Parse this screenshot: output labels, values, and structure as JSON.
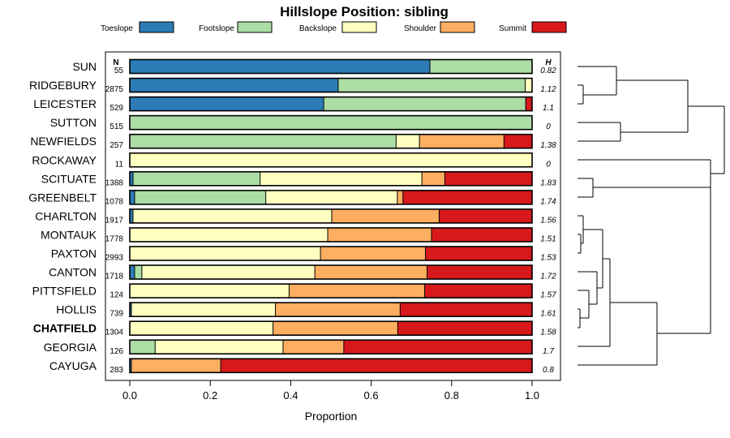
{
  "chart_data": {
    "type": "bar",
    "orientation": "horizontal",
    "stacked": true,
    "title": "Hillslope Position: sibling",
    "xlabel": "Proportion",
    "xlim": [
      0,
      1
    ],
    "x_ticks": [
      "0.0",
      "0.2",
      "0.4",
      "0.6",
      "0.8",
      "1.0"
    ],
    "n_header": "N",
    "h_header": "H",
    "legend_position": "top",
    "series": [
      {
        "name": "Toeslope",
        "color": "#2c7bb6"
      },
      {
        "name": "Footslope",
        "color": "#abdda4"
      },
      {
        "name": "Backslope",
        "color": "#ffffbf"
      },
      {
        "name": "Shoulder",
        "color": "#fdae61"
      },
      {
        "name": "Summit",
        "color": "#d7191c"
      }
    ],
    "rows": [
      {
        "name": "SUN",
        "n": "55",
        "h": "0.82",
        "highlight": false,
        "values": [
          0.746,
          0.254,
          0,
          0,
          0
        ]
      },
      {
        "name": "RIDGEBURY",
        "n": "2875",
        "h": "1.12",
        "highlight": false,
        "values": [
          0.518,
          0.465,
          0.017,
          0,
          0
        ]
      },
      {
        "name": "LEICESTER",
        "n": "529",
        "h": "1.1",
        "highlight": false,
        "values": [
          0.482,
          0.502,
          0,
          0,
          0.016
        ]
      },
      {
        "name": "SUTTON",
        "n": "515",
        "h": "0",
        "highlight": false,
        "values": [
          0,
          1,
          0,
          0,
          0
        ]
      },
      {
        "name": "NEWFIELDS",
        "n": "257",
        "h": "1.38",
        "highlight": false,
        "values": [
          0,
          0.662,
          0.058,
          0.21,
          0.07
        ]
      },
      {
        "name": "ROCKAWAY",
        "n": "11",
        "h": "0",
        "highlight": false,
        "values": [
          0,
          0,
          1,
          0,
          0
        ]
      },
      {
        "name": "SCITUATE",
        "n": "1388",
        "h": "1.83",
        "highlight": false,
        "values": [
          0.008,
          0.316,
          0.402,
          0.057,
          0.217
        ]
      },
      {
        "name": "GREENBELT",
        "n": "1078",
        "h": "1.74",
        "highlight": false,
        "values": [
          0.012,
          0.326,
          0.327,
          0.014,
          0.321
        ]
      },
      {
        "name": "CHARLTON",
        "n": "1917",
        "h": "1.56",
        "highlight": false,
        "values": [
          0.008,
          0,
          0.494,
          0.267,
          0.231
        ]
      },
      {
        "name": "MONTAUK",
        "n": "1778",
        "h": "1.51",
        "highlight": false,
        "values": [
          0,
          0,
          0.492,
          0.258,
          0.25
        ]
      },
      {
        "name": "PAXTON",
        "n": "2993",
        "h": "1.53",
        "highlight": false,
        "values": [
          0,
          0,
          0.474,
          0.261,
          0.265
        ]
      },
      {
        "name": "CANTON",
        "n": "1718",
        "h": "1.72",
        "highlight": false,
        "values": [
          0.012,
          0.018,
          0.43,
          0.279,
          0.261
        ]
      },
      {
        "name": "PITTSFIELD",
        "n": "124",
        "h": "1.57",
        "highlight": false,
        "values": [
          0,
          0,
          0.396,
          0.337,
          0.267
        ]
      },
      {
        "name": "HOLLIS",
        "n": "739",
        "h": "1.61",
        "highlight": false,
        "values": [
          0.004,
          0,
          0.358,
          0.31,
          0.328
        ]
      },
      {
        "name": "CHATFIELD",
        "n": "1304",
        "h": "1.58",
        "highlight": true,
        "values": [
          0,
          0,
          0.356,
          0.31,
          0.334
        ]
      },
      {
        "name": "GEORGIA",
        "n": "126",
        "h": "1.7",
        "highlight": false,
        "values": [
          0,
          0.063,
          0.318,
          0.151,
          0.468
        ]
      },
      {
        "name": "CAYUGA",
        "n": "283",
        "h": "0.8",
        "highlight": false,
        "values": [
          0.004,
          0,
          0,
          0.222,
          0.774
        ]
      }
    ]
  }
}
